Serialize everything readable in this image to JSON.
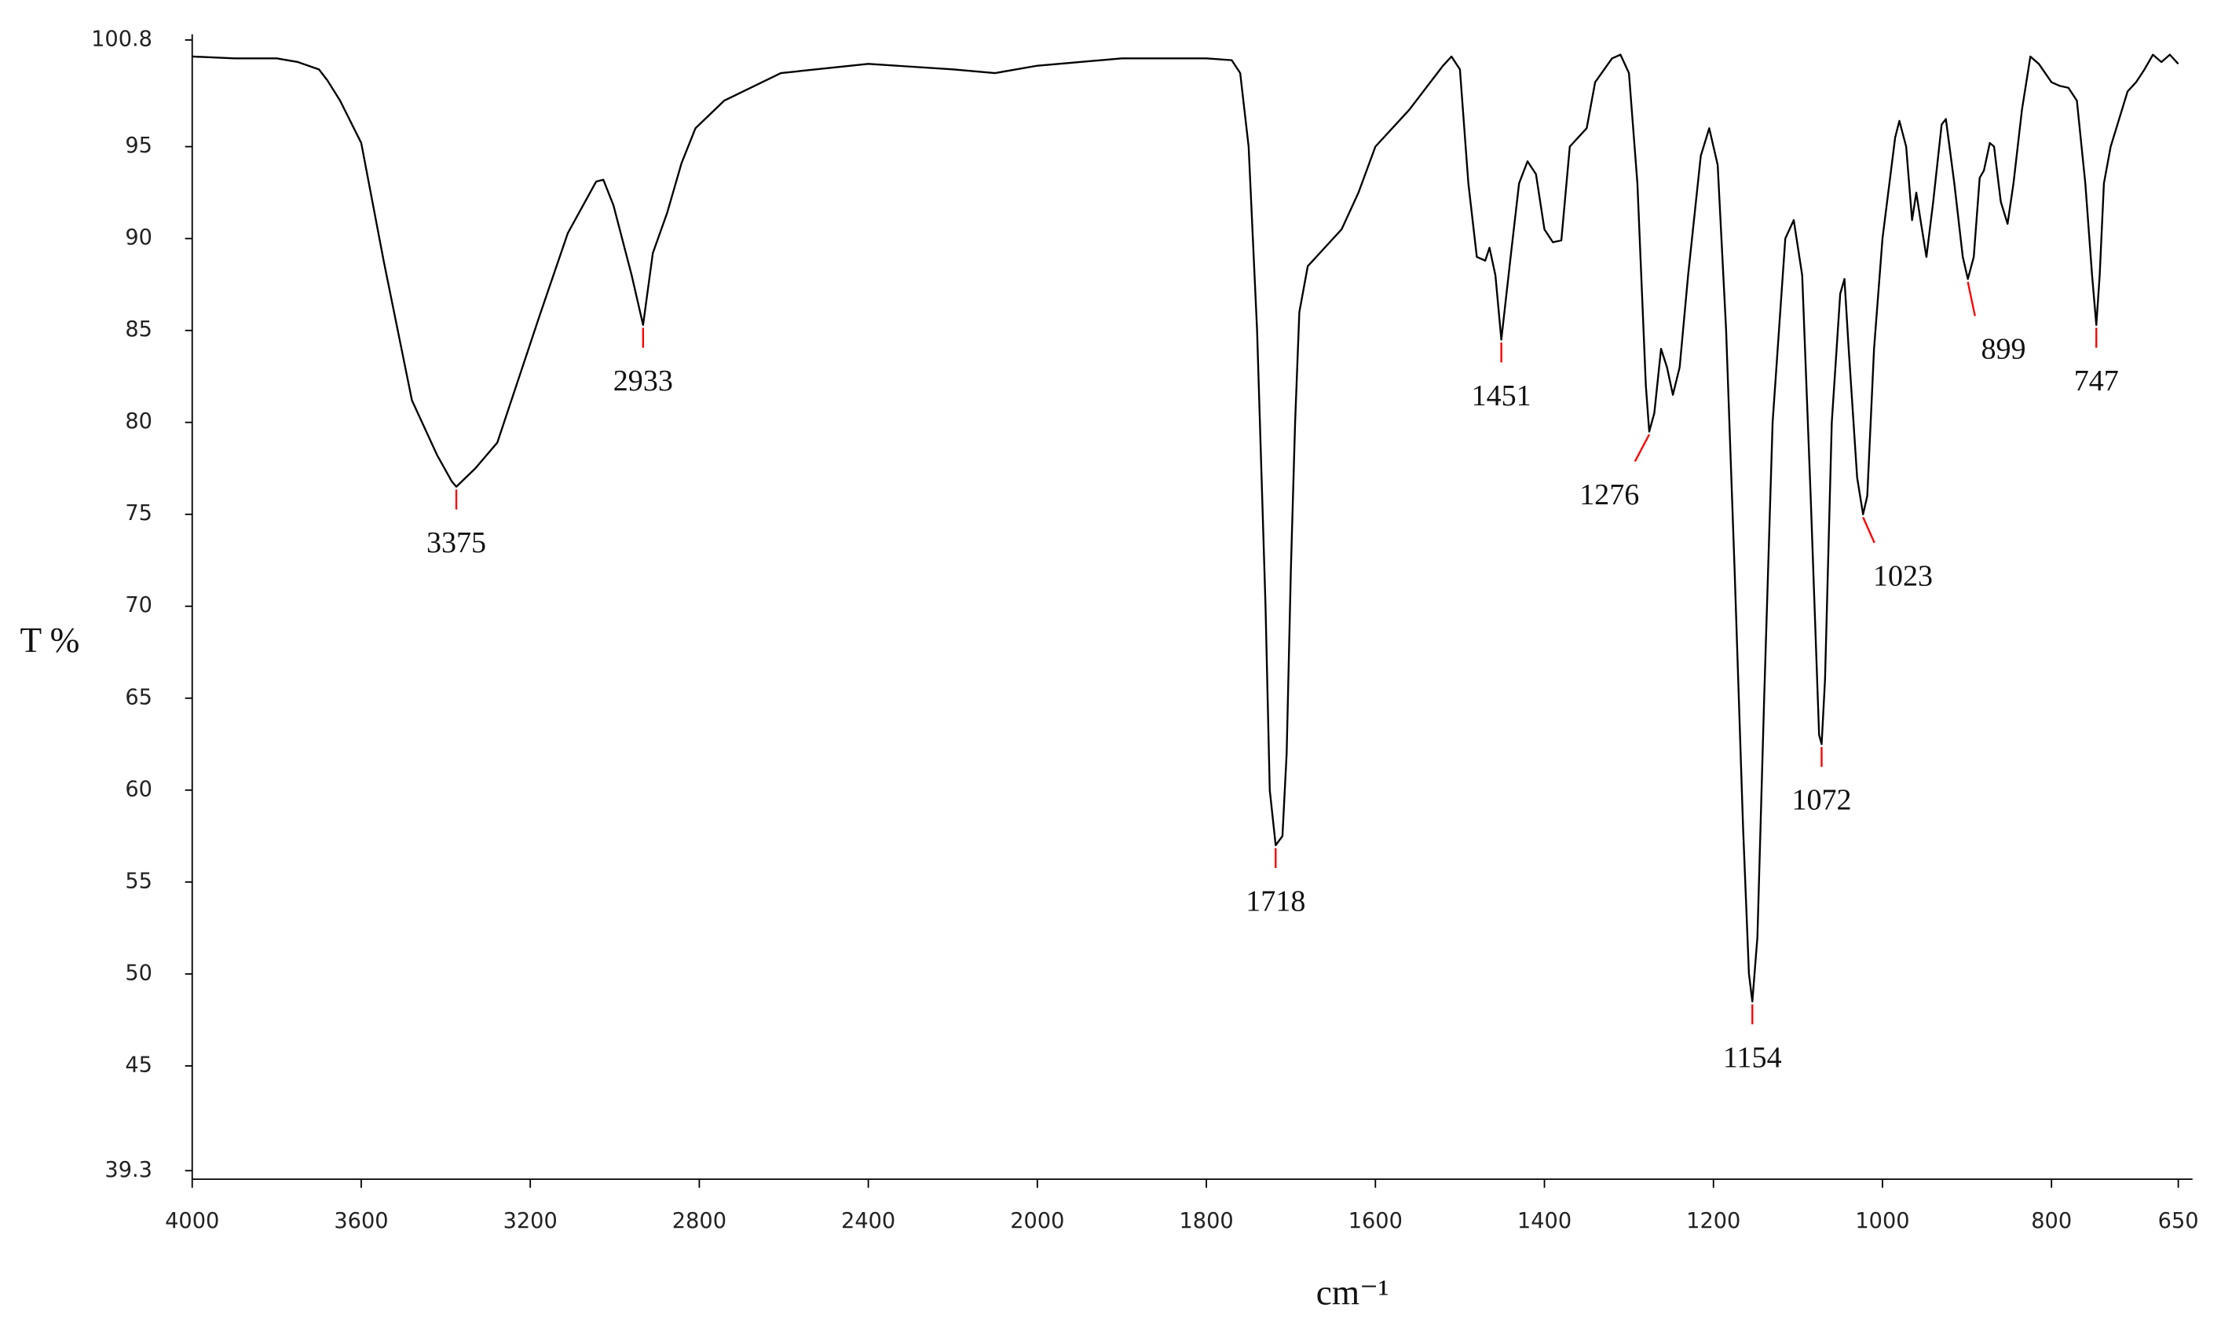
{
  "chart_data": {
    "type": "line",
    "xlabel": "cm⁻¹",
    "ylabel": "T %",
    "xlim": [
      4000,
      650
    ],
    "xscale_break": 2000,
    "xscale_zoom": 2,
    "ylim": [
      39.3,
      100.8
    ],
    "xticks": [
      4000,
      3600,
      3200,
      2800,
      2400,
      2000,
      1800,
      1600,
      1400,
      1200,
      1000,
      800,
      650
    ],
    "yticks": [
      39.3,
      45,
      50,
      55,
      60,
      65,
      70,
      75,
      80,
      85,
      90,
      95,
      100.8
    ],
    "grid": false,
    "color": "#000000",
    "peak_color": "#ff0000",
    "x": [
      4000,
      3900,
      3800,
      3750,
      3700,
      3680,
      3650,
      3600,
      3547,
      3480,
      3420,
      3386,
      3375,
      3330,
      3278,
      3178,
      3111,
      3044,
      3027,
      3003,
      2977,
      2960,
      2933,
      2910,
      2876,
      2842,
      2809,
      2741,
      2607,
      2400,
      2200,
      2100,
      2000,
      1900,
      1800,
      1770,
      1760,
      1750,
      1740,
      1730,
      1725,
      1718,
      1710,
      1705,
      1700,
      1695,
      1690,
      1680,
      1660,
      1640,
      1620,
      1600,
      1560,
      1520,
      1510,
      1500,
      1490,
      1480,
      1470,
      1465,
      1458,
      1451,
      1440,
      1430,
      1420,
      1410,
      1400,
      1390,
      1380,
      1370,
      1360,
      1350,
      1340,
      1320,
      1310,
      1300,
      1290,
      1280,
      1276,
      1270,
      1262,
      1255,
      1248,
      1240,
      1230,
      1215,
      1205,
      1195,
      1185,
      1175,
      1165,
      1158,
      1154,
      1148,
      1140,
      1130,
      1115,
      1105,
      1095,
      1085,
      1075,
      1072,
      1068,
      1060,
      1050,
      1045,
      1040,
      1030,
      1023,
      1018,
      1010,
      1000,
      985,
      980,
      972,
      965,
      960,
      955,
      948,
      940,
      930,
      925,
      915,
      905,
      899,
      892,
      885,
      880,
      873,
      868,
      860,
      852,
      845,
      835,
      825,
      815,
      800,
      790,
      780,
      770,
      760,
      752,
      747,
      743,
      738,
      730,
      720,
      710,
      700,
      690,
      680,
      670,
      660,
      650
    ],
    "values": [
      99.9,
      99.8,
      99.8,
      99.6,
      99.2,
      98.6,
      97.5,
      95.2,
      88.8,
      81.2,
      78.2,
      76.8,
      76.5,
      77.5,
      78.9,
      85.8,
      90.3,
      93.1,
      93.2,
      91.8,
      89.5,
      88,
      85.3,
      89.2,
      91.4,
      94.1,
      96,
      97.5,
      99,
      99.5,
      99.2,
      99,
      99.4,
      99.8,
      99.8,
      99.7,
      99,
      95,
      85,
      70,
      60,
      57,
      57.5,
      62,
      72,
      80,
      86,
      88.5,
      89.5,
      90.5,
      92.5,
      95,
      97,
      99.4,
      99.9,
      99.2,
      93,
      89,
      88.8,
      89.5,
      88,
      84.5,
      89,
      93,
      94.2,
      93.5,
      90.5,
      89.8,
      89.9,
      95,
      95.5,
      96,
      98.5,
      99.8,
      100,
      99,
      93,
      82,
      79.5,
      80.5,
      84,
      83,
      81.5,
      83,
      88,
      94.5,
      96,
      94,
      85,
      72,
      58,
      50,
      48.5,
      52,
      65,
      80,
      90,
      91,
      88,
      76,
      63,
      62.5,
      66,
      80,
      87,
      87.8,
      84,
      77,
      75,
      76,
      84,
      90,
      95.5,
      96.4,
      95,
      91,
      92.5,
      91,
      89,
      92,
      96.2,
      96.5,
      93,
      89,
      87.8,
      89,
      93.3,
      93.7,
      95.2,
      95,
      92,
      90.8,
      93,
      97,
      99.9,
      99.5,
      98.5,
      98.3,
      98.2,
      97.5,
      93,
      88,
      85.3,
      88,
      93,
      95,
      96.5,
      98,
      98.5,
      99.2,
      100,
      99.6,
      100,
      99.5
    ],
    "peaks": [
      {
        "x": 3375,
        "y": 76.5
      },
      {
        "x": 2933,
        "y": 85.3
      },
      {
        "x": 1718,
        "y": 57
      },
      {
        "x": 1451,
        "y": 84.5
      },
      {
        "x": 1276,
        "y": 79.5
      },
      {
        "x": 1154,
        "y": 48.5
      },
      {
        "x": 1072,
        "y": 62.5
      },
      {
        "x": 1023,
        "y": 75
      },
      {
        "x": 899,
        "y": 87.8
      },
      {
        "x": 747,
        "y": 85.3
      }
    ]
  }
}
